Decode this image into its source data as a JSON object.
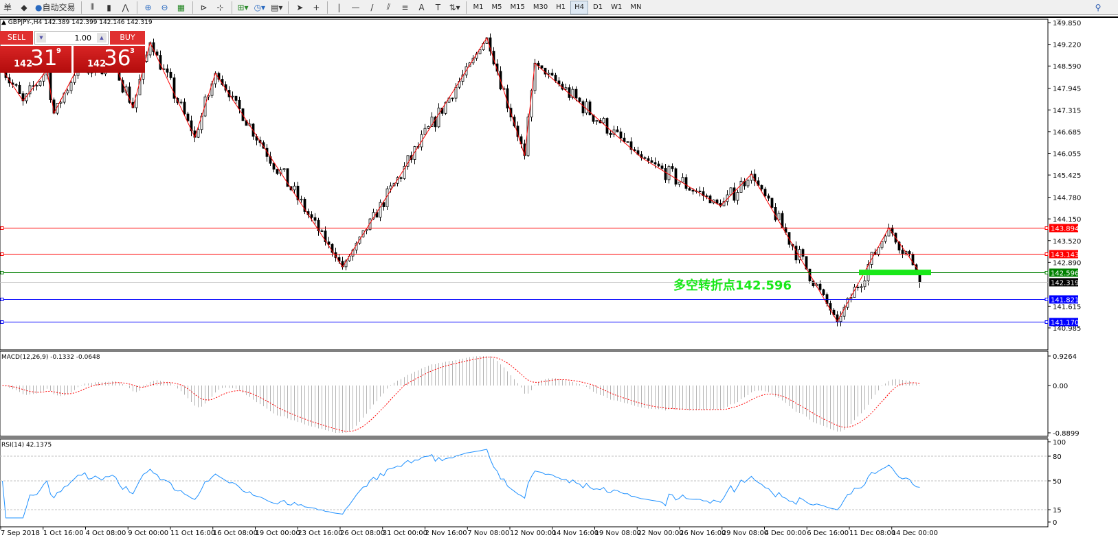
{
  "toolbar": {
    "items": [
      {
        "label": "单",
        "icon": "menu-icon"
      },
      {
        "icon": "folder-icon"
      },
      {
        "label": "自动交易",
        "icon": "autotrade-icon"
      },
      {
        "icon": "bar-chart-icon"
      },
      {
        "icon": "candlestick-icon"
      },
      {
        "icon": "line-chart-icon"
      },
      {
        "icon": "zoom-in-icon"
      },
      {
        "icon": "zoom-out-icon"
      },
      {
        "icon": "tile-windows-icon"
      },
      {
        "icon": "chart-shift-icon"
      },
      {
        "icon": "autoscroll-icon"
      },
      {
        "icon": "indicators-icon"
      },
      {
        "icon": "periods-icon"
      },
      {
        "icon": "templates-icon"
      },
      {
        "icon": "cursor-icon"
      },
      {
        "icon": "crosshair-icon"
      },
      {
        "icon": "vertical-line-icon"
      },
      {
        "icon": "horizontal-line-icon"
      },
      {
        "icon": "trendline-icon"
      },
      {
        "icon": "equidistant-channel-icon"
      },
      {
        "icon": "fibonacci-icon"
      },
      {
        "label": "A",
        "icon": "text-icon"
      },
      {
        "label": "T",
        "icon": "text-label-icon"
      },
      {
        "icon": "arrows-icon"
      }
    ],
    "timeframes": [
      "M1",
      "M5",
      "M15",
      "M30",
      "H1",
      "H4",
      "D1",
      "W1",
      "MN"
    ],
    "active_timeframe": "H4",
    "search_icon": "search-icon"
  },
  "chart": {
    "header": "GBPJPY-,H4  142.389 142.399 142.146 142.319",
    "symbol": "GBPJPY-",
    "period": "H4",
    "open": 142.389,
    "high": 142.399,
    "low": 142.146,
    "close": 142.319,
    "price_ticks": [
      "149.850",
      "149.220",
      "148.590",
      "147.945",
      "147.315",
      "146.685",
      "146.055",
      "145.425",
      "144.780",
      "144.150",
      "143.520",
      "142.890",
      "141.615",
      "140.985"
    ],
    "levels": [
      {
        "price": "143.894",
        "color": "#ff0000"
      },
      {
        "price": "143.143",
        "color": "#ff0000"
      },
      {
        "price": "142.596",
        "color": "#008000"
      },
      {
        "price": "142.319",
        "color": "#c0c0c0",
        "label_bg": "#000000"
      },
      {
        "price": "141.821",
        "color": "#0000ff"
      },
      {
        "price": "141.170",
        "color": "#0000ff"
      }
    ],
    "annotation": "多空转折点142.596",
    "annotation_color": "#19e819",
    "zigzag": [
      [
        0,
        148.48
      ],
      [
        6,
        147.58
      ],
      [
        13,
        148.48
      ],
      [
        15,
        147.22
      ],
      [
        22,
        148.57
      ],
      [
        28,
        148.48
      ],
      [
        33,
        148.57
      ],
      [
        38,
        147.38
      ],
      [
        43,
        149.27
      ],
      [
        56,
        146.52
      ],
      [
        62,
        148.38
      ],
      [
        99,
        142.76
      ],
      [
        141,
        149.41
      ],
      [
        152,
        145.99
      ],
      [
        155,
        148.67
      ],
      [
        186,
        145.93
      ],
      [
        209,
        144.53
      ],
      [
        218,
        145.45
      ],
      [
        243,
        141.17
      ],
      [
        258,
        143.89
      ],
      [
        267,
        142.6
      ]
    ],
    "last_close": 142.319
  },
  "trade_panel": {
    "sell_label": "SELL",
    "buy_label": "BUY",
    "lot": "1.00",
    "sell_big": "31",
    "sell_small": "142",
    "sell_sup": "9",
    "buy_big": "36",
    "buy_small": "142",
    "buy_sup": "3"
  },
  "macd": {
    "label": "MACD(12,26,9) -0.1332 -0.0648",
    "ticks": [
      "0.9264",
      "0.00",
      "-0.8899"
    ]
  },
  "rsi": {
    "label": "RSI(14) 42.1375",
    "ticks": [
      "100",
      "80",
      "50",
      "15",
      "0"
    ],
    "levels": [
      80,
      50,
      15
    ],
    "color": "#1e90ff"
  },
  "time_axis": [
    "7 Sep 2018",
    "1 Oct 16:00",
    "4 Oct 08:00",
    "9 Oct 00:00",
    "11 Oct 16:00",
    "16 Oct 08:00",
    "19 Oct 00:00",
    "23 Oct 16:00",
    "26 Oct 08:00",
    "31 Oct 00:00",
    "2 Nov 16:00",
    "7 Nov 08:00",
    "12 Nov 00:00",
    "14 Nov 16:00",
    "19 Nov 08:00",
    "22 Nov 00:00",
    "26 Nov 16:00",
    "29 Nov 08:00",
    "4 Dec 00:00",
    "6 Dec 16:00",
    "11 Dec 08:00",
    "14 Dec 00:00"
  ]
}
